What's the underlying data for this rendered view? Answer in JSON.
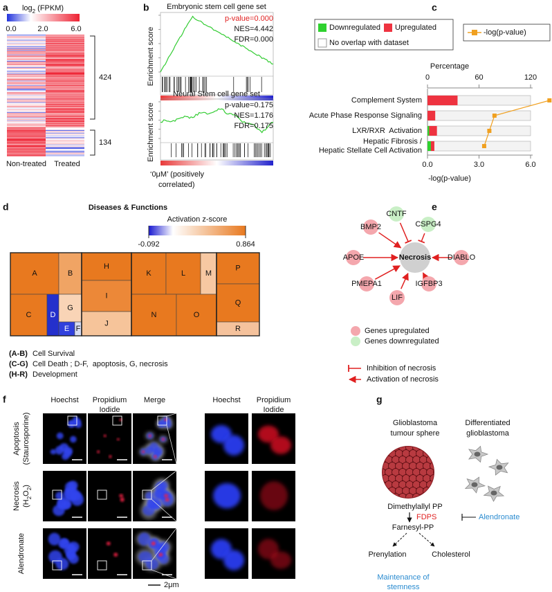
{
  "panels": {
    "a": {
      "label": "a",
      "scale_title": {
        "base": "log",
        "sub": "2",
        "rest": " (FPKM)"
      },
      "scale_ticks": [
        "0.0",
        "2.0",
        "6.0"
      ],
      "clusters": [
        "424",
        "134"
      ],
      "columns": [
        "Non-treated",
        "Treated"
      ]
    },
    "b": {
      "label": "b",
      "gene_sets": [
        {
          "title": "Embryonic stem cell gene set",
          "p_value": "p-value=0.000",
          "p_color": "#e02020",
          "nes": "NES=4.442",
          "fdr": "FDR=0.000",
          "y_label": "Enrichment score"
        },
        {
          "title": "Neural Stem cell gene set",
          "p_value": "p-value=0.175",
          "p_color": "#111111",
          "nes": "NES=1.176",
          "fdr": "FDR=0.175",
          "y_label": "Enrichment score"
        }
      ],
      "x_note": [
        "‘0μM’ (positively",
        "correlated)"
      ]
    },
    "c": {
      "label": "c",
      "chart_data": {
        "type": "bar",
        "categories": [
          [
            "Complement System"
          ],
          [
            "Acute Phase Response Signaling"
          ],
          [
            "LXR/RXR  Activation"
          ],
          [
            "Hepatic Fibrosis /",
            "Hepatic Stellate Cell Activation"
          ]
        ],
        "series": [
          {
            "name": "Downregulated",
            "color": "#2fd12f",
            "values": [
              0,
              0,
              2,
              4
            ]
          },
          {
            "name": "Upregulated",
            "color": "#ee3340",
            "values": [
              35,
              9,
              9,
              4
            ]
          }
        ],
        "other_legend": "No overlap with dataset",
        "x_label": "Percentage",
        "xlim": [
          0,
          120
        ],
        "xticks": [
          0,
          60,
          120
        ],
        "line": {
          "name": "-log(p-value)",
          "color": "#f0a020",
          "values": [
            7.1,
            3.9,
            3.6,
            3.3
          ]
        },
        "x2_label": "-log(p-value)",
        "x2lim": [
          0,
          6
        ],
        "x2ticks": [
          {
            "value": 0,
            "label": "0.0"
          },
          {
            "value": 3,
            "label": "3.0"
          },
          {
            "value": 6,
            "label": "6.0"
          }
        ]
      }
    },
    "d": {
      "label": "d",
      "title": "Diseases & Functions",
      "scale_title": "Activation z-score",
      "scale_ticks": [
        -0.092,
        0.864
      ],
      "cells": [
        {
          "label": "A",
          "color": "#e8791f"
        },
        {
          "label": "B",
          "color": "#f0a464"
        },
        {
          "label": "C",
          "color": "#e8791f"
        },
        {
          "label": "D",
          "color": "#2430cc"
        },
        {
          "label": "G",
          "color": "#f9d4b6"
        },
        {
          "label": "E",
          "color": "#3040dd"
        },
        {
          "label": "F",
          "color": "#d6dcf4"
        },
        {
          "label": "H",
          "color": "#e8791f"
        },
        {
          "label": "I",
          "color": "#ec8838"
        },
        {
          "label": "J",
          "color": "#f6c49a"
        },
        {
          "label": "K",
          "color": "#e8791f"
        },
        {
          "label": "L",
          "color": "#e8791f"
        },
        {
          "label": "M",
          "color": "#f7c8a2"
        },
        {
          "label": "N",
          "color": "#e8791f"
        },
        {
          "label": "O",
          "color": "#e8791f"
        },
        {
          "label": "P",
          "color": "#e8791f"
        },
        {
          "label": "Q",
          "color": "#e8791f"
        },
        {
          "label": "R",
          "color": "#f5c29c"
        }
      ],
      "legend": [
        {
          "range": "(A-B)",
          "text": "Cell Survival"
        },
        {
          "range": "(C-G)",
          "text": "Cell Death ; D-F,  apoptosis, G, necrosis"
        },
        {
          "range": "(H-R)",
          "text": "Development"
        }
      ]
    },
    "e": {
      "label": "e",
      "center": "Necrosis",
      "nodes": [
        {
          "label": "BMP2",
          "regulation": "up",
          "effect": "activation"
        },
        {
          "label": "CNTF",
          "regulation": "down",
          "effect": "inhibition"
        },
        {
          "label": "CSPG4",
          "regulation": "down",
          "effect": "inhibition"
        },
        {
          "label": "APOE",
          "regulation": "up",
          "effect": "activation"
        },
        {
          "label": "DIABLO",
          "regulation": "up",
          "effect": "activation"
        },
        {
          "label": "PMEPA1",
          "regulation": "up",
          "effect": "activation"
        },
        {
          "label": "LIF",
          "regulation": "up",
          "effect": "activation"
        },
        {
          "label": "IGFBP3",
          "regulation": "up",
          "effect": "activation"
        }
      ],
      "colors": {
        "up": "#f4a7ad",
        "down": "#c9efc6"
      },
      "legend": {
        "up": "Genes upregulated",
        "down": "Genes downregulated",
        "inhibition": "Inhibition of necrosis",
        "activation": "Activation of necrosis"
      }
    },
    "f": {
      "label": "f",
      "columns": [
        [
          "Hoechst"
        ],
        [
          "Propidium",
          "Iodide"
        ],
        [
          "Merge"
        ]
      ],
      "zoom_columns": [
        [
          "Hoechst"
        ],
        [
          "Propidium",
          "Iodide"
        ]
      ],
      "rows": [
        {
          "lines": [
            "Apoptosis",
            "(Staurosporine)"
          ]
        },
        {
          "lines": [
            "Necrosis"
          ],
          "formula": [
            "(H",
            "2",
            "O",
            "2",
            ")"
          ]
        },
        {
          "lines": [
            "Alendronate"
          ]
        }
      ],
      "scale_bar": "2μm"
    },
    "g": {
      "label": "g",
      "sphere": [
        "Glioblastoma",
        "tumour sphere"
      ],
      "differentiated": [
        "Differentiated",
        "glioblastoma"
      ],
      "substrate": "Dimethylallyl PP",
      "enzyme": "FDPS",
      "inhibitor": "Alendronate",
      "product": "Farnesyl-PP",
      "outcomes": [
        "Prenylation",
        "Cholesterol"
      ],
      "result": [
        "Maintenance of",
        "stemness"
      ]
    }
  }
}
